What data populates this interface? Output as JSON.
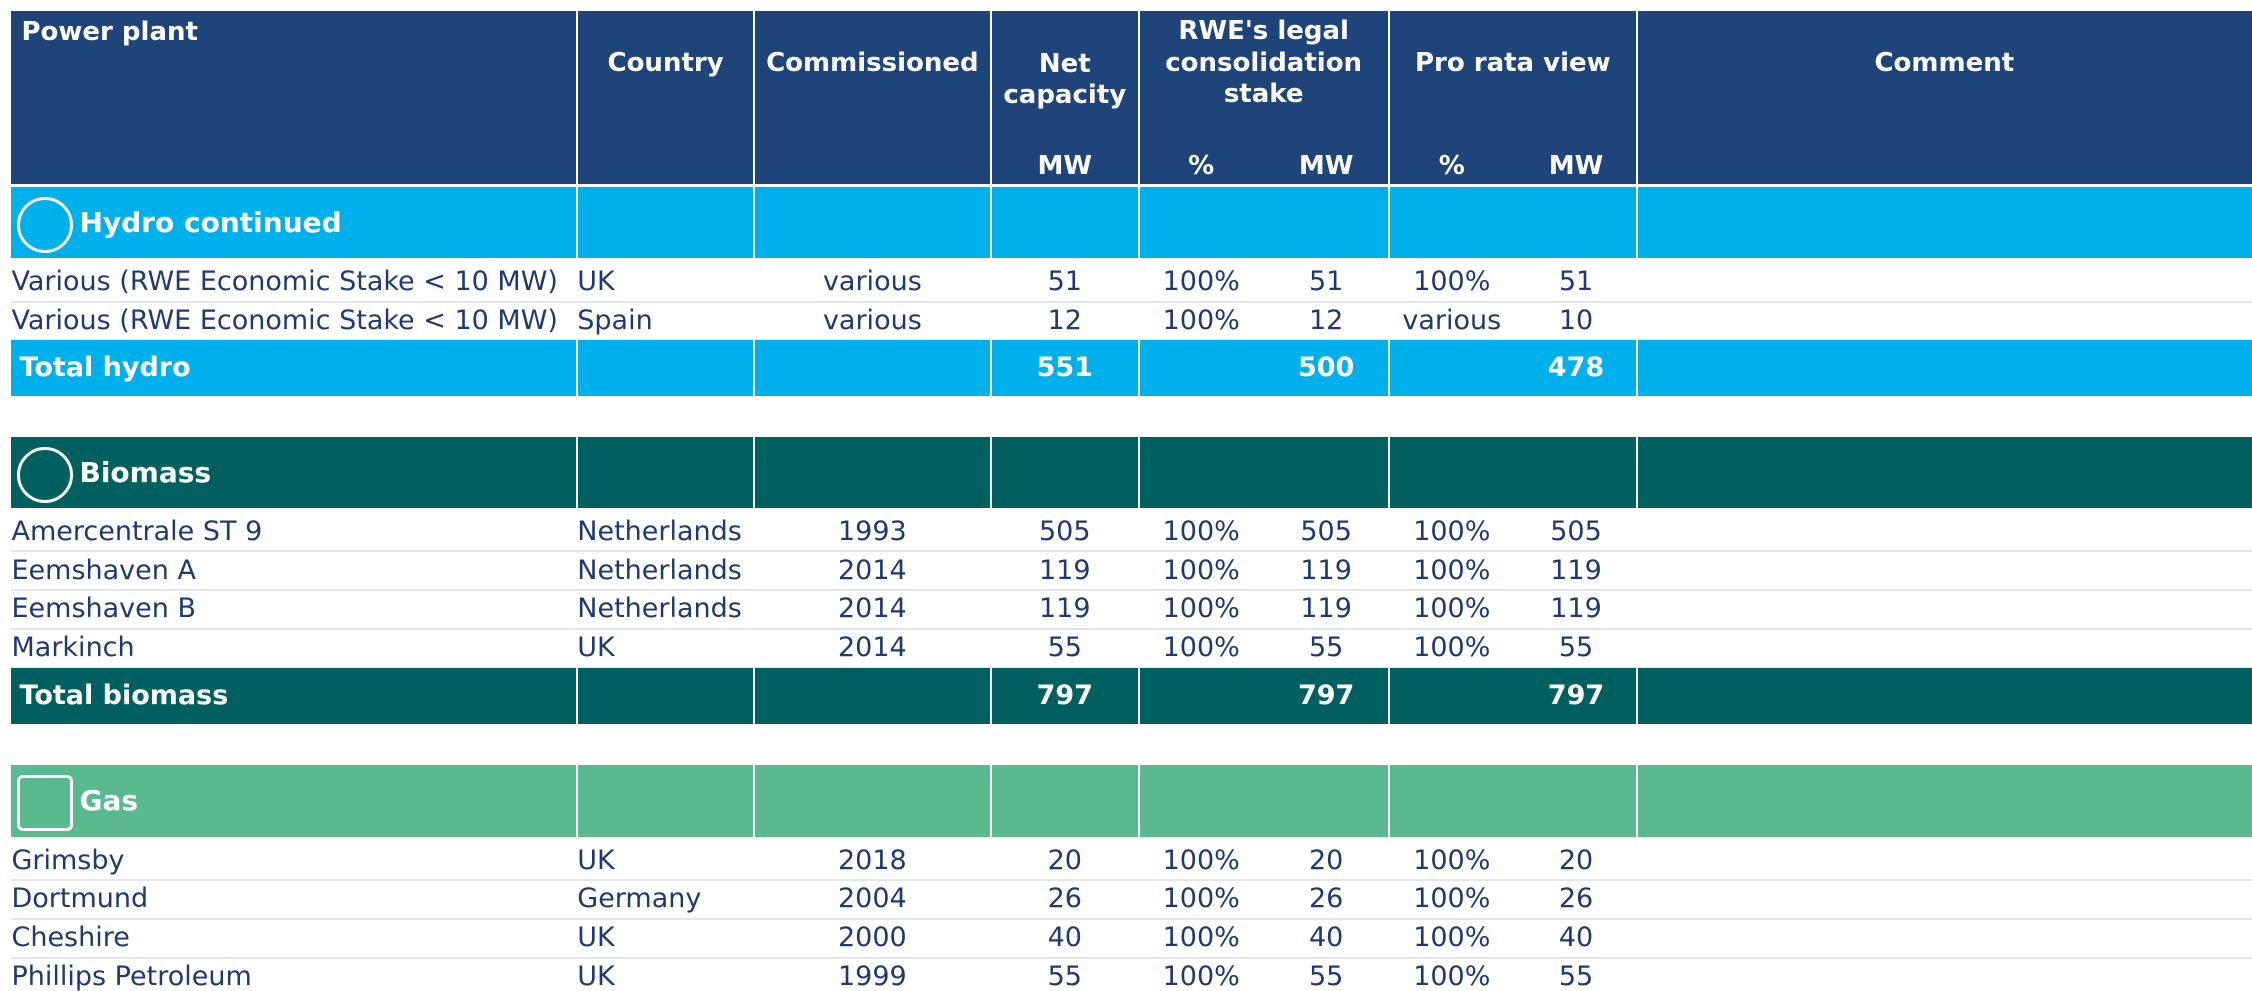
{
  "header": {
    "columns": [
      "Power plant",
      "Country",
      "Commissioned",
      "Net capacity",
      "RWE's legal consolidation stake",
      "Pro rata view",
      "Comment"
    ],
    "units": [
      "MW",
      "%",
      "MW",
      "%",
      "MW"
    ]
  },
  "sections": [
    {
      "title": "Hydro continued",
      "rows": [
        [
          "Various (RWE Economic Stake < 10 MW)",
          "UK",
          "various",
          "51",
          "100%",
          "51",
          "100%",
          "51"
        ],
        [
          "Various (RWE Economic Stake < 10 MW)",
          "Spain",
          "various",
          "12",
          "100%",
          "12",
          "various",
          "10"
        ]
      ],
      "total": {
        "label": "Total hydro",
        "values": [
          "551",
          "500",
          "478"
        ]
      }
    },
    {
      "title": "Biomass",
      "rows": [
        [
          "Amercentrale ST 9",
          "Netherlands",
          "1993",
          "505",
          "100%",
          "505",
          "100%",
          "505"
        ],
        [
          "Eemshaven A",
          "Netherlands",
          "2014",
          "119",
          "100%",
          "119",
          "100%",
          "119"
        ],
        [
          "Eemshaven B",
          "Netherlands",
          "2014",
          "119",
          "100%",
          "119",
          "100%",
          "119"
        ],
        [
          "Markinch",
          "UK",
          "2014",
          "55",
          "100%",
          "55",
          "100%",
          "55"
        ]
      ],
      "total": {
        "label": "Total biomass",
        "values": [
          "797",
          "797",
          "797"
        ]
      }
    },
    {
      "title": "Gas",
      "rows": [
        [
          "Grimsby",
          "UK",
          "2018",
          "20",
          "100%",
          "20",
          "100%",
          "20"
        ],
        [
          "Dortmund",
          "Germany",
          "2004",
          "26",
          "100%",
          "26",
          "100%",
          "26"
        ],
        [
          "Cheshire",
          "UK",
          "2000",
          "40",
          "100%",
          "40",
          "100%",
          "40"
        ],
        [
          "Phillips Petroleum",
          "UK",
          "1999",
          "55",
          "100%",
          "55",
          "100%",
          "55"
        ]
      ]
    }
  ]
}
